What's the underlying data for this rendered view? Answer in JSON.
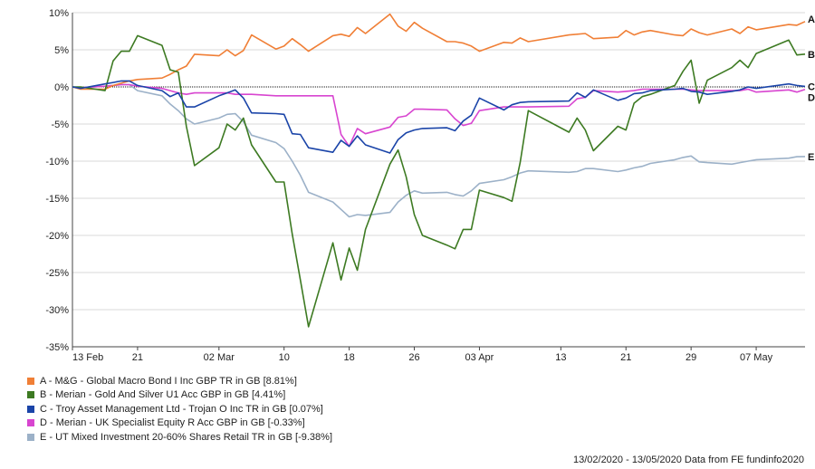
{
  "chart_data": {
    "type": "line",
    "x": [
      "2020-02-13",
      "2020-02-14",
      "2020-02-17",
      "2020-02-18",
      "2020-02-19",
      "2020-02-20",
      "2020-02-21",
      "2020-02-24",
      "2020-02-25",
      "2020-02-26",
      "2020-02-27",
      "2020-02-28",
      "2020-03-02",
      "2020-03-03",
      "2020-03-04",
      "2020-03-05",
      "2020-03-06",
      "2020-03-09",
      "2020-03-10",
      "2020-03-11",
      "2020-03-12",
      "2020-03-13",
      "2020-03-16",
      "2020-03-17",
      "2020-03-18",
      "2020-03-19",
      "2020-03-20",
      "2020-03-23",
      "2020-03-24",
      "2020-03-25",
      "2020-03-26",
      "2020-03-27",
      "2020-03-30",
      "2020-03-31",
      "2020-04-01",
      "2020-04-02",
      "2020-04-03",
      "2020-04-06",
      "2020-04-07",
      "2020-04-08",
      "2020-04-09",
      "2020-04-14",
      "2020-04-15",
      "2020-04-16",
      "2020-04-17",
      "2020-04-20",
      "2020-04-21",
      "2020-04-22",
      "2020-04-23",
      "2020-04-24",
      "2020-04-27",
      "2020-04-28",
      "2020-04-29",
      "2020-04-30",
      "2020-05-01",
      "2020-05-04",
      "2020-05-05",
      "2020-05-06",
      "2020-05-07",
      "2020-05-11",
      "2020-05-12",
      "2020-05-13"
    ],
    "x_tick_labels": [
      "13 Feb",
      "21",
      "02 Mar",
      "10",
      "18",
      "26",
      "03 Apr",
      "13",
      "21",
      "29",
      "07 May"
    ],
    "x_tick_dates": [
      "2020-02-13",
      "2020-02-21",
      "2020-03-02",
      "2020-03-10",
      "2020-03-18",
      "2020-03-26",
      "2020-04-03",
      "2020-04-13",
      "2020-04-21",
      "2020-04-29",
      "2020-05-07"
    ],
    "ylim": [
      -35,
      10
    ],
    "y_ticks": [
      10,
      5,
      0,
      -5,
      -10,
      -15,
      -20,
      -25,
      -30,
      -35
    ],
    "y_tick_labels": [
      "10%",
      "5%",
      "0%",
      "-5%",
      "-10%",
      "-15%",
      "-20%",
      "-25%",
      "-30%",
      "-35%"
    ],
    "grid": "horizontal",
    "legend_position": "bottom-left",
    "series": [
      {
        "name": "A - M&G - Global Macro Bond I Inc GBP TR in GB [8.81%]",
        "end_label": "A",
        "color": "#f07f36",
        "values": [
          0,
          -0.3,
          -0.3,
          0.2,
          0.5,
          0.8,
          1.0,
          1.2,
          1.7,
          2.3,
          2.8,
          4.4,
          4.2,
          5.0,
          4.2,
          4.9,
          7.0,
          5.1,
          5.5,
          6.5,
          5.7,
          4.8,
          6.9,
          7.1,
          6.8,
          8.0,
          7.2,
          9.8,
          8.2,
          7.5,
          8.7,
          7.9,
          6.1,
          6.1,
          5.9,
          5.5,
          4.8,
          6.0,
          5.9,
          6.6,
          6.1,
          7.0,
          7.1,
          7.2,
          6.5,
          6.7,
          7.6,
          7.0,
          7.4,
          7.6,
          7.0,
          6.9,
          7.8,
          7.3,
          7.0,
          7.8,
          7.2,
          8.1,
          7.7,
          8.4,
          8.3,
          8.81
        ]
      },
      {
        "name": "B - Merian - Gold And Silver U1 Acc GBP in GB [4.41%]",
        "end_label": "B",
        "color": "#3d7a22",
        "values": [
          0,
          0,
          -0.5,
          3.5,
          4.8,
          4.8,
          6.9,
          5.6,
          2.3,
          2.0,
          -5.3,
          -10.6,
          -8.2,
          -5.0,
          -5.8,
          -4.2,
          -7.8,
          -12.8,
          -12.8,
          -19.8,
          -26.0,
          -32.3,
          -21.0,
          -26.0,
          -21.7,
          -24.7,
          -19.2,
          -10.4,
          -8.5,
          -12.1,
          -17.2,
          -20.0,
          -21.3,
          -21.8,
          -19.2,
          -19.2,
          -13.9,
          -14.9,
          -15.4,
          -10.2,
          -3.2,
          -6.1,
          -4.2,
          -5.8,
          -8.6,
          -5.3,
          -5.8,
          -2.2,
          -1.3,
          -1.0,
          0.2,
          2.1,
          3.6,
          -2.2,
          0.9,
          2.6,
          3.6,
          2.6,
          4.5,
          6.3,
          4.3,
          4.41
        ]
      },
      {
        "name": "C - Troy Asset Management Ltd - Trojan O Inc TR in GB [0.07%]",
        "end_label": "C",
        "color": "#1a44a8",
        "values": [
          0,
          -0.2,
          0.4,
          0.6,
          0.8,
          0.8,
          0.2,
          -0.5,
          -1.3,
          -0.8,
          -2.7,
          -2.7,
          -1.2,
          -0.8,
          -0.4,
          -1.5,
          -3.5,
          -3.6,
          -3.7,
          -6.3,
          -6.4,
          -8.2,
          -8.8,
          -7.2,
          -8.0,
          -6.6,
          -7.8,
          -8.9,
          -7.1,
          -6.2,
          -5.8,
          -5.6,
          -5.5,
          -5.9,
          -4.6,
          -3.8,
          -1.5,
          -3.1,
          -2.4,
          -2.1,
          -2.0,
          -1.9,
          -0.8,
          -1.4,
          -0.4,
          -1.8,
          -1.5,
          -0.9,
          -0.8,
          -0.5,
          -0.3,
          -0.2,
          -0.6,
          -0.7,
          -1.0,
          -0.6,
          -0.4,
          0.0,
          -0.2,
          0.4,
          0.2,
          0.07
        ]
      },
      {
        "name": "D - Merian - UK Specialist Equity R Acc GBP in GB [-0.33%]",
        "end_label": "D",
        "color": "#d845d0",
        "values": [
          0,
          -0.1,
          0.1,
          0.2,
          0.3,
          0.3,
          0.1,
          -0.2,
          -0.5,
          -0.8,
          -1.0,
          -0.8,
          -0.8,
          -0.8,
          -1.0,
          -1.0,
          -1.0,
          -1.2,
          -1.2,
          -1.2,
          -1.2,
          -1.2,
          -1.2,
          -6.4,
          -8.0,
          -5.6,
          -6.3,
          -5.4,
          -4.1,
          -3.9,
          -3.0,
          -3.0,
          -3.1,
          -4.3,
          -5.2,
          -4.9,
          -3.2,
          -2.7,
          -2.7,
          -2.7,
          -2.7,
          -2.6,
          -1.6,
          -1.4,
          -0.5,
          -0.7,
          -0.6,
          -0.5,
          -0.3,
          -0.3,
          -0.3,
          -0.3,
          -0.4,
          -0.5,
          -0.5,
          -0.5,
          -0.5,
          -0.3,
          -0.7,
          -0.4,
          -0.7,
          -0.33
        ]
      },
      {
        "name": "E - UT Mixed Investment 20-60% Shares Retail TR in GB [-9.38%]",
        "end_label": "E",
        "color": "#9cb1c8",
        "values": [
          0,
          -0.1,
          0.1,
          0.2,
          0.3,
          0.3,
          -0.5,
          -1.2,
          -2.3,
          -3.2,
          -4.3,
          -5.0,
          -4.2,
          -3.7,
          -3.6,
          -4.7,
          -6.5,
          -7.5,
          -8.3,
          -10.0,
          -11.9,
          -14.2,
          -15.5,
          -16.5,
          -17.5,
          -17.2,
          -17.3,
          -16.9,
          -15.5,
          -14.6,
          -14.0,
          -14.3,
          -14.2,
          -14.5,
          -14.7,
          -14.0,
          -13.0,
          -12.5,
          -12.1,
          -11.6,
          -11.3,
          -11.5,
          -11.4,
          -11.0,
          -11.0,
          -11.4,
          -11.2,
          -10.9,
          -10.7,
          -10.3,
          -9.8,
          -9.5,
          -9.3,
          -10.1,
          -10.2,
          -10.4,
          -10.2,
          -10.0,
          -9.8,
          -9.6,
          -9.4,
          -9.38
        ]
      }
    ]
  },
  "footer": {
    "text": "13/02/2020 - 13/05/2020 Data from FE fundinfo2020"
  }
}
